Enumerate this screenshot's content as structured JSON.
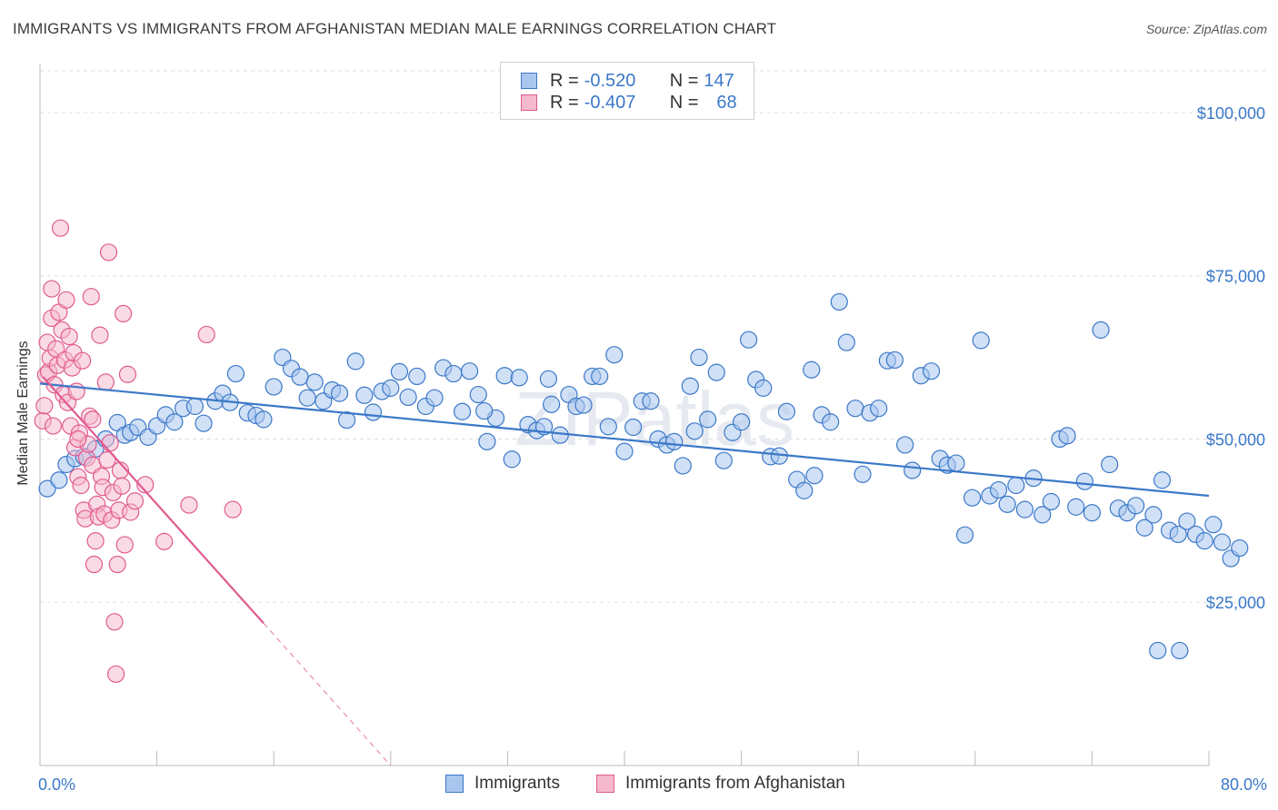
{
  "title": "IMMIGRANTS VS IMMIGRANTS FROM AFGHANISTAN MEDIAN MALE EARNINGS CORRELATION CHART",
  "source": "Source: ZipAtlas.com",
  "watermark": "ZIPatlas",
  "colors": {
    "blue": "#3b78c8",
    "blue_fill": "#a9c6ee",
    "pink": "#e05b8f",
    "pink_fill": "#f6b8cc",
    "grid": "#dddddd"
  },
  "legend": {
    "rows": [
      {
        "r_label": "R = ",
        "r_value": "-0.520",
        "n_label": "N = ",
        "n_value": "147"
      },
      {
        "r_label": "R = ",
        "r_value": "-0.407",
        "n_label": "N = ",
        "n_value": "68"
      }
    ]
  },
  "bottom_legend": {
    "immigrants": "Immigrants",
    "afghanistan": "Immigrants from Afghanistan"
  },
  "chart_data": {
    "type": "scatter",
    "title": "IMMIGRANTS VS IMMIGRANTS FROM AFGHANISTAN MEDIAN MALE EARNINGS CORRELATION CHART",
    "xlabel": "",
    "ylabel": "Median Male Earnings",
    "xlim": [
      0,
      80
    ],
    "ylim": [
      0,
      107500
    ],
    "x_tick_labels": [
      "0.0%",
      "80.0%"
    ],
    "y_ticks": [
      25000,
      50000,
      75000,
      100000
    ],
    "y_tick_labels": [
      "$25,000",
      "$50,000",
      "$75,000",
      "$100,000"
    ],
    "grid": true,
    "series": [
      {
        "name": "Immigrants",
        "color": "#3b78c8",
        "r": -0.52,
        "n": 147,
        "trend": {
          "x0": 0,
          "y0": 58500,
          "x1": 80,
          "y1": 41300
        },
        "points": [
          [
            0.5,
            42400
          ],
          [
            1.3,
            43700
          ],
          [
            1.8,
            46100
          ],
          [
            2.4,
            47000
          ],
          [
            3.0,
            47300
          ],
          [
            3.8,
            48500
          ],
          [
            4.5,
            50000
          ],
          [
            5.3,
            52500
          ],
          [
            5.8,
            50600
          ],
          [
            6.2,
            51000
          ],
          [
            6.7,
            51800
          ],
          [
            7.4,
            50300
          ],
          [
            8.0,
            52000
          ],
          [
            8.6,
            53700
          ],
          [
            9.2,
            52600
          ],
          [
            9.8,
            54700
          ],
          [
            10.6,
            55000
          ],
          [
            11.2,
            52400
          ],
          [
            12.0,
            55800
          ],
          [
            12.5,
            57000
          ],
          [
            13.0,
            55600
          ],
          [
            13.4,
            60000
          ],
          [
            14.2,
            54000
          ],
          [
            14.8,
            53600
          ],
          [
            15.3,
            53000
          ],
          [
            16.0,
            58000
          ],
          [
            16.6,
            62500
          ],
          [
            17.2,
            60800
          ],
          [
            17.8,
            59500
          ],
          [
            18.3,
            56300
          ],
          [
            18.8,
            58700
          ],
          [
            19.4,
            55800
          ],
          [
            20.0,
            57500
          ],
          [
            20.5,
            57000
          ],
          [
            21.0,
            52900
          ],
          [
            21.6,
            61900
          ],
          [
            22.2,
            56700
          ],
          [
            22.8,
            54100
          ],
          [
            23.4,
            57300
          ],
          [
            24.0,
            57800
          ],
          [
            24.6,
            60300
          ],
          [
            25.2,
            56400
          ],
          [
            25.8,
            59600
          ],
          [
            26.4,
            55000
          ],
          [
            27.0,
            56300
          ],
          [
            27.6,
            60900
          ],
          [
            28.3,
            60000
          ],
          [
            28.9,
            54200
          ],
          [
            29.4,
            60400
          ],
          [
            30.0,
            56800
          ],
          [
            30.6,
            49600
          ],
          [
            31.2,
            53200
          ],
          [
            31.8,
            59700
          ],
          [
            32.3,
            46900
          ],
          [
            32.8,
            59400
          ],
          [
            33.4,
            52200
          ],
          [
            34.0,
            51300
          ],
          [
            34.5,
            51900
          ],
          [
            35.0,
            55300
          ],
          [
            35.6,
            50600
          ],
          [
            36.2,
            56800
          ],
          [
            36.7,
            55000
          ],
          [
            37.2,
            55200
          ],
          [
            37.8,
            59600
          ],
          [
            38.3,
            59600
          ],
          [
            38.9,
            51900
          ],
          [
            39.3,
            62900
          ],
          [
            40.0,
            48100
          ],
          [
            40.6,
            51800
          ],
          [
            41.2,
            55800
          ],
          [
            41.8,
            55800
          ],
          [
            42.3,
            50000
          ],
          [
            42.9,
            49100
          ],
          [
            43.4,
            49600
          ],
          [
            44.0,
            45900
          ],
          [
            44.5,
            58100
          ],
          [
            45.1,
            62500
          ],
          [
            45.7,
            53000
          ],
          [
            46.3,
            60200
          ],
          [
            46.8,
            46700
          ],
          [
            47.4,
            51000
          ],
          [
            48.0,
            52600
          ],
          [
            48.5,
            65200
          ],
          [
            49.0,
            59100
          ],
          [
            49.5,
            57800
          ],
          [
            50.0,
            47300
          ],
          [
            50.6,
            47400
          ],
          [
            51.1,
            54200
          ],
          [
            51.8,
            43800
          ],
          [
            52.3,
            42100
          ],
          [
            52.8,
            60600
          ],
          [
            53.5,
            53700
          ],
          [
            54.1,
            52600
          ],
          [
            54.7,
            71000
          ],
          [
            55.2,
            64800
          ],
          [
            55.8,
            54700
          ],
          [
            56.3,
            44600
          ],
          [
            56.8,
            54000
          ],
          [
            57.4,
            54700
          ],
          [
            58.0,
            62000
          ],
          [
            58.5,
            62100
          ],
          [
            59.2,
            49100
          ],
          [
            59.7,
            45200
          ],
          [
            60.3,
            59700
          ],
          [
            61.0,
            60400
          ],
          [
            61.6,
            47000
          ],
          [
            62.1,
            46000
          ],
          [
            62.7,
            46300
          ],
          [
            63.3,
            35300
          ],
          [
            63.8,
            41000
          ],
          [
            64.4,
            65100
          ],
          [
            65.0,
            41300
          ],
          [
            65.6,
            42200
          ],
          [
            66.2,
            40000
          ],
          [
            66.8,
            42900
          ],
          [
            67.4,
            39200
          ],
          [
            68.0,
            44000
          ],
          [
            68.6,
            38400
          ],
          [
            69.2,
            40400
          ],
          [
            69.8,
            50000
          ],
          [
            70.3,
            50500
          ],
          [
            70.9,
            39600
          ],
          [
            71.5,
            43500
          ],
          [
            72.0,
            38700
          ],
          [
            72.6,
            66700
          ],
          [
            73.2,
            46100
          ],
          [
            73.8,
            39400
          ],
          [
            74.4,
            38700
          ],
          [
            75.0,
            39800
          ],
          [
            75.6,
            36400
          ],
          [
            76.2,
            38400
          ],
          [
            76.8,
            43700
          ],
          [
            77.3,
            36000
          ],
          [
            77.9,
            35400
          ],
          [
            78.5,
            37400
          ],
          [
            79.1,
            35400
          ],
          [
            79.7,
            34400
          ],
          [
            80.3,
            36900
          ],
          [
            80.9,
            34200
          ],
          [
            81.5,
            31700
          ],
          [
            82.1,
            33300
          ],
          [
            76.5,
            17600
          ],
          [
            78.0,
            17600
          ],
          [
            30.4,
            54300
          ],
          [
            34.8,
            59200
          ],
          [
            44.8,
            51200
          ],
          [
            53.0,
            44400
          ]
        ]
      },
      {
        "name": "Immigrants from Afghanistan",
        "color": "#e05b8f",
        "r": -0.407,
        "n": 68,
        "trend": {
          "x0": 0.2,
          "y0": 59500,
          "x1": 15.3,
          "y1": 21800
        },
        "trend_dashed": {
          "x0": 15.3,
          "y0": 21800,
          "x1": 24.0,
          "y1": 0
        },
        "points": [
          [
            0.2,
            52800
          ],
          [
            0.3,
            55100
          ],
          [
            0.4,
            59800
          ],
          [
            0.5,
            64800
          ],
          [
            0.6,
            60300
          ],
          [
            0.7,
            62400
          ],
          [
            0.8,
            68500
          ],
          [
            0.8,
            73000
          ],
          [
            0.9,
            52000
          ],
          [
            1.0,
            58300
          ],
          [
            1.1,
            63800
          ],
          [
            1.2,
            61300
          ],
          [
            1.3,
            69400
          ],
          [
            1.4,
            82300
          ],
          [
            1.5,
            66700
          ],
          [
            1.6,
            56800
          ],
          [
            1.7,
            62100
          ],
          [
            1.8,
            71300
          ],
          [
            1.9,
            55600
          ],
          [
            2.0,
            65700
          ],
          [
            2.1,
            52000
          ],
          [
            2.2,
            60900
          ],
          [
            2.3,
            63200
          ],
          [
            2.4,
            48700
          ],
          [
            2.5,
            57300
          ],
          [
            2.6,
            44200
          ],
          [
            2.7,
            50900
          ],
          [
            2.8,
            42900
          ],
          [
            2.9,
            62000
          ],
          [
            3.0,
            39100
          ],
          [
            3.1,
            37800
          ],
          [
            3.2,
            47100
          ],
          [
            3.3,
            49200
          ],
          [
            3.4,
            53500
          ],
          [
            3.5,
            71800
          ],
          [
            3.6,
            46000
          ],
          [
            3.7,
            30800
          ],
          [
            3.8,
            34400
          ],
          [
            3.9,
            40000
          ],
          [
            4.0,
            38100
          ],
          [
            4.1,
            65900
          ],
          [
            4.2,
            44300
          ],
          [
            4.3,
            42600
          ],
          [
            4.4,
            38500
          ],
          [
            4.5,
            58700
          ],
          [
            4.6,
            46800
          ],
          [
            4.7,
            78600
          ],
          [
            4.8,
            49400
          ],
          [
            4.9,
            37600
          ],
          [
            5.0,
            41800
          ],
          [
            5.1,
            22000
          ],
          [
            5.2,
            14000
          ],
          [
            5.3,
            30800
          ],
          [
            5.4,
            39100
          ],
          [
            5.5,
            45200
          ],
          [
            5.6,
            42800
          ],
          [
            5.7,
            69200
          ],
          [
            5.8,
            33800
          ],
          [
            6.0,
            59900
          ],
          [
            6.2,
            38800
          ],
          [
            7.2,
            43000
          ],
          [
            8.5,
            34300
          ],
          [
            10.2,
            39900
          ],
          [
            11.4,
            66000
          ],
          [
            13.2,
            39200
          ],
          [
            6.5,
            40500
          ],
          [
            3.6,
            53000
          ],
          [
            2.6,
            50000
          ]
        ]
      }
    ]
  }
}
